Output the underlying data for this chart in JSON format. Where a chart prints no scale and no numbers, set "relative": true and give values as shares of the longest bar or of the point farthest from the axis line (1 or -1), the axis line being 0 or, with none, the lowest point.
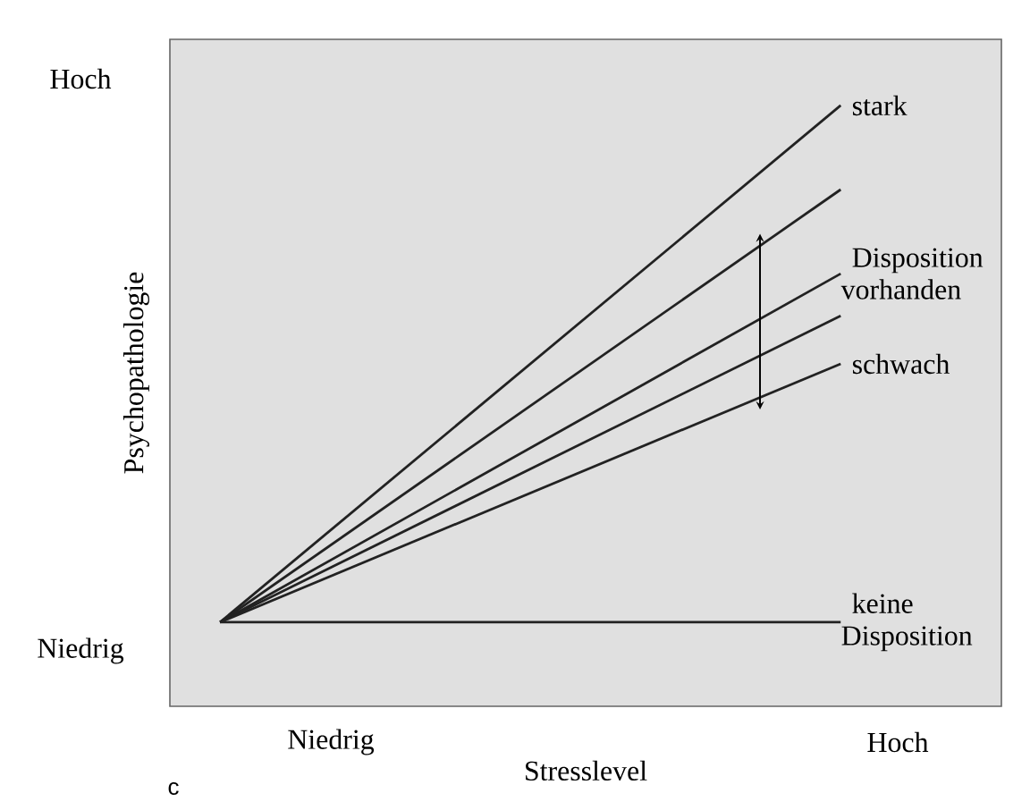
{
  "chart_data": {
    "type": "line",
    "xlabel": "Stresslevel",
    "ylabel": "Psychopathologie",
    "relative": true,
    "categories": [
      null,
      null
    ],
    "series": [
      {
        "name": "stark",
        "color": "#222222",
        "values": [
          0.14,
          1
        ]
      },
      {
        "color": "#222222",
        "values": [
          0.14,
          0.86
        ]
      },
      {
        "name": "Disposition vorhanden",
        "color": "#222222",
        "values": [
          0.14,
          0.72
        ]
      },
      {
        "color": "#222222",
        "values": [
          0.14,
          0.65
        ]
      },
      {
        "name": "schwach",
        "color": "#222222",
        "values": [
          0.14,
          0.57
        ]
      },
      {
        "name": "keine Disposition",
        "color": "#222222",
        "values": [
          0.14,
          0.14
        ]
      }
    ],
    "annotations": [
      "Hoch",
      "Niedrig",
      "Niedrig",
      "Hoch",
      "c"
    ]
  }
}
